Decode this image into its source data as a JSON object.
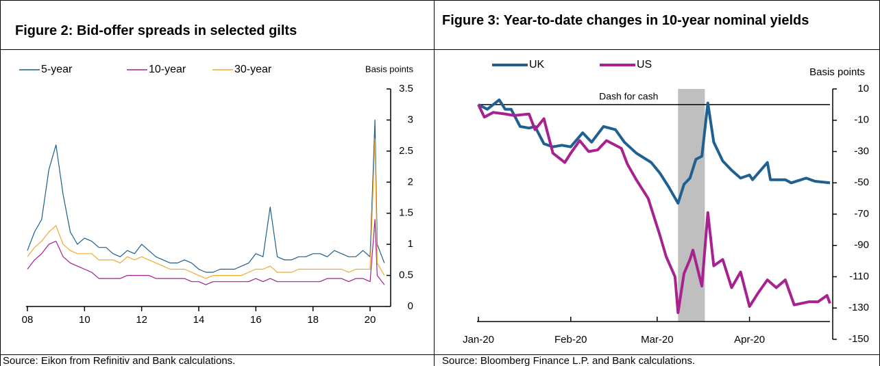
{
  "chart_data": [
    {
      "type": "line",
      "title": "Figure 2: Bid-offer spreads in selected gilts",
      "source": "Source:  Eikon from Refinitiv and Bank calculations.",
      "y_axis_label": "Basis points",
      "x": [
        2008,
        2008.25,
        2008.5,
        2008.75,
        2009,
        2009.25,
        2009.5,
        2009.75,
        2010,
        2010.25,
        2010.5,
        2010.75,
        2011,
        2011.25,
        2011.5,
        2011.75,
        2012,
        2012.25,
        2012.5,
        2012.75,
        2013,
        2013.25,
        2013.5,
        2013.75,
        2014,
        2014.25,
        2014.5,
        2014.75,
        2015,
        2015.25,
        2015.5,
        2015.75,
        2016,
        2016.25,
        2016.5,
        2016.75,
        2017,
        2017.25,
        2017.5,
        2017.75,
        2018,
        2018.25,
        2018.5,
        2018.75,
        2019,
        2019.25,
        2019.5,
        2019.75,
        2020,
        2020.17,
        2020.25,
        2020.5
      ],
      "series": [
        {
          "name": "5-year",
          "color": "#1b5e8c",
          "values": [
            0.9,
            1.2,
            1.4,
            2.2,
            2.6,
            1.8,
            1.2,
            1.0,
            1.1,
            1.05,
            0.95,
            0.95,
            0.85,
            0.8,
            0.9,
            0.85,
            1.0,
            0.9,
            0.8,
            0.75,
            0.7,
            0.7,
            0.75,
            0.7,
            0.6,
            0.55,
            0.55,
            0.6,
            0.6,
            0.6,
            0.65,
            0.7,
            0.85,
            0.8,
            1.6,
            0.8,
            0.75,
            0.75,
            0.8,
            0.8,
            0.85,
            0.85,
            0.8,
            0.9,
            0.85,
            0.8,
            0.8,
            0.9,
            0.8,
            3.0,
            1.0,
            0.7
          ]
        },
        {
          "name": "10-year",
          "color": "#a0208e",
          "values": [
            0.6,
            0.75,
            0.85,
            1.0,
            1.05,
            0.8,
            0.7,
            0.65,
            0.6,
            0.55,
            0.45,
            0.45,
            0.45,
            0.45,
            0.5,
            0.5,
            0.5,
            0.5,
            0.45,
            0.45,
            0.45,
            0.45,
            0.45,
            0.4,
            0.4,
            0.35,
            0.4,
            0.4,
            0.4,
            0.4,
            0.4,
            0.4,
            0.45,
            0.4,
            0.45,
            0.4,
            0.4,
            0.4,
            0.4,
            0.4,
            0.4,
            0.4,
            0.45,
            0.45,
            0.45,
            0.4,
            0.45,
            0.45,
            0.4,
            1.4,
            0.5,
            0.35
          ]
        },
        {
          "name": "30-year",
          "color": "#f0a830",
          "values": [
            0.8,
            0.95,
            1.05,
            1.2,
            1.3,
            1.0,
            0.9,
            0.85,
            0.85,
            0.85,
            0.75,
            0.75,
            0.75,
            0.7,
            0.8,
            0.75,
            0.8,
            0.75,
            0.7,
            0.65,
            0.6,
            0.6,
            0.6,
            0.55,
            0.5,
            0.45,
            0.5,
            0.5,
            0.5,
            0.5,
            0.5,
            0.55,
            0.6,
            0.6,
            0.65,
            0.55,
            0.55,
            0.55,
            0.6,
            0.6,
            0.6,
            0.6,
            0.6,
            0.6,
            0.6,
            0.55,
            0.6,
            0.6,
            0.6,
            2.7,
            0.7,
            0.5
          ]
        }
      ],
      "xlim": [
        2008,
        2020.6
      ],
      "xticks": [
        {
          "value": 2008,
          "label": "08"
        },
        {
          "value": 2010,
          "label": "10"
        },
        {
          "value": 2012,
          "label": "12"
        },
        {
          "value": 2014,
          "label": "14"
        },
        {
          "value": 2016,
          "label": "16"
        },
        {
          "value": 2018,
          "label": "18"
        },
        {
          "value": 2020,
          "label": "20"
        }
      ],
      "ylim": [
        0,
        3.5
      ],
      "yticks": [
        0,
        0.5,
        1,
        1.5,
        2,
        2.5,
        3,
        3.5
      ]
    },
    {
      "type": "line",
      "title": "Figure 3: Year-to-date changes in 10-year nominal yields",
      "source": "Source:  Bloomberg Finance L.P. and Bank calculations.",
      "y_axis_label": "Basis points",
      "series": [
        {
          "name": "UK",
          "color": "#1f6090",
          "x": [
            0,
            3,
            7,
            9,
            11,
            14,
            17,
            19,
            22,
            25,
            28,
            31,
            35,
            38,
            42,
            46,
            49,
            53,
            58,
            61,
            64,
            67,
            69,
            71,
            73,
            75,
            77,
            79,
            82,
            85,
            88,
            91,
            92,
            97,
            98,
            103,
            105,
            110,
            113,
            118
          ],
          "values": [
            0,
            -3,
            3,
            -3,
            -3,
            -14,
            -15,
            -14,
            -25,
            -27,
            -26,
            -27,
            -18,
            -24,
            -14,
            -16,
            -24,
            -31,
            -37,
            -44,
            -53,
            -63,
            -51,
            -47,
            -35,
            -33,
            1,
            -24,
            -36,
            -42,
            -47,
            -45,
            -48,
            -37,
            -48,
            -48,
            -50,
            -47,
            -49,
            -50
          ]
        },
        {
          "name": "US",
          "color": "#a8228f",
          "x": [
            0,
            2,
            5,
            9,
            12,
            17,
            19,
            22,
            25,
            29,
            31,
            34,
            37,
            40,
            43,
            48,
            50,
            53,
            57,
            59,
            61,
            63,
            66,
            67,
            69,
            71,
            72,
            75,
            77,
            79,
            82,
            85,
            88,
            91,
            94,
            97,
            100,
            103,
            106,
            111,
            114,
            117,
            118
          ],
          "values": [
            0,
            -8,
            -5,
            -6,
            -7,
            -6,
            -16,
            -9,
            -31,
            -37,
            -31,
            -23,
            -30,
            -29,
            -23,
            -28,
            -38,
            -48,
            -60,
            -72,
            -84,
            -97,
            -110,
            -133,
            -108,
            -99,
            -93,
            -116,
            -69,
            -103,
            -99,
            -117,
            -107,
            -129,
            -120,
            -112,
            -117,
            -112,
            -128,
            -126,
            -126,
            -122,
            -127
          ]
        }
      ],
      "shade_x": [
        67,
        76
      ],
      "shade_label": "Dash for cash",
      "hline": 0,
      "xlim": [
        0,
        118
      ],
      "xticks": [
        {
          "value": 0,
          "label": "Jan-20"
        },
        {
          "value": 31,
          "label": "Feb-20"
        },
        {
          "value": 60,
          "label": "Mar-20"
        },
        {
          "value": 91,
          "label": "Apr-20"
        }
      ],
      "ylim": [
        -150,
        10
      ],
      "yticks": [
        10,
        -10,
        -30,
        -50,
        -70,
        -90,
        -110,
        -130,
        -150
      ]
    }
  ]
}
